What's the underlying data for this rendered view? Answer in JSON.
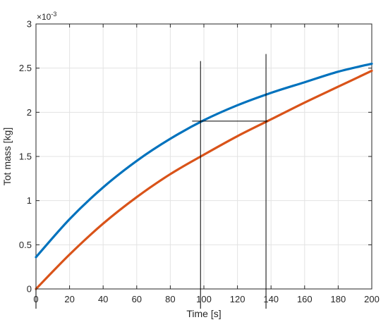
{
  "chart_data": {
    "type": "line",
    "xlabel": "Time [s]",
    "ylabel": "Tot mass [kg]",
    "y_exponent_label": "×10",
    "y_exponent_power": "-3",
    "xlim": [
      0,
      200
    ],
    "ylim": [
      0,
      3
    ],
    "x_ticks": [
      "0",
      "20",
      "40",
      "60",
      "80",
      "100",
      "120",
      "140",
      "160",
      "180",
      "200"
    ],
    "y_ticks": [
      "0",
      "0.5",
      "1",
      "1.5",
      "2",
      "2.5",
      "3"
    ],
    "grid": true,
    "y_scale_factor": 0.001,
    "series": [
      {
        "color": "#0072BD",
        "x": [
          0,
          20,
          40,
          60,
          80,
          100,
          120,
          140,
          160,
          180,
          200
        ],
        "y": [
          0.36,
          0.79,
          1.15,
          1.45,
          1.7,
          1.91,
          2.08,
          2.22,
          2.34,
          2.46,
          2.55
        ]
      },
      {
        "color": "#D95319",
        "x": [
          0,
          20,
          40,
          60,
          80,
          100,
          120,
          140,
          160,
          180,
          200
        ],
        "y": [
          0.0,
          0.39,
          0.74,
          1.04,
          1.3,
          1.52,
          1.73,
          1.92,
          2.11,
          2.29,
          2.47
        ]
      }
    ],
    "annotations": {
      "color": "#000000",
      "vertical_lines": [
        {
          "x": 98,
          "y_from": 0,
          "y_to": 2.58
        },
        {
          "x": 137,
          "y_from": 0,
          "y_to": 2.66
        }
      ],
      "horizontal_lines": [
        {
          "y": 1.9,
          "x_from": 93,
          "x_to": 138
        }
      ]
    }
  }
}
